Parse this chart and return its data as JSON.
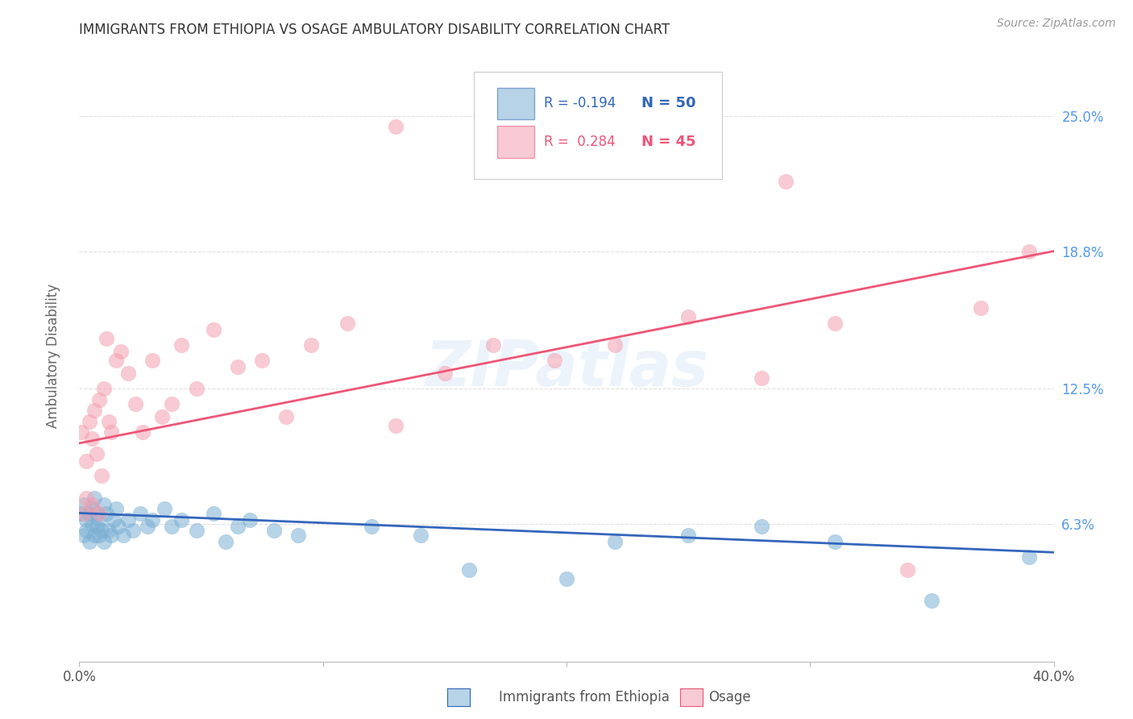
{
  "title": "IMMIGRANTS FROM ETHIOPIA VS OSAGE AMBULATORY DISABILITY CORRELATION CHART",
  "source": "Source: ZipAtlas.com",
  "ylabel": "Ambulatory Disability",
  "watermark": "ZIPatlas",
  "legend_blue_r": "R = -0.194",
  "legend_blue_n": "N = 50",
  "legend_pink_r": "R =  0.284",
  "legend_pink_n": "N = 45",
  "xmin": 0.0,
  "xmax": 0.4,
  "ymin": 0.0,
  "ymax": 0.28,
  "yticks": [
    0.0,
    0.063,
    0.125,
    0.188,
    0.25
  ],
  "ytick_labels": [
    "",
    "6.3%",
    "12.5%",
    "18.8%",
    "25.0%"
  ],
  "xticks": [
    0.0,
    0.1,
    0.2,
    0.3,
    0.4
  ],
  "xtick_labels": [
    "0.0%",
    "",
    "",
    "",
    "40.0%"
  ],
  "blue_scatter_x": [
    0.001,
    0.002,
    0.002,
    0.003,
    0.003,
    0.004,
    0.004,
    0.005,
    0.005,
    0.006,
    0.006,
    0.007,
    0.007,
    0.008,
    0.008,
    0.009,
    0.01,
    0.01,
    0.011,
    0.012,
    0.013,
    0.014,
    0.015,
    0.016,
    0.018,
    0.02,
    0.022,
    0.025,
    0.028,
    0.03,
    0.035,
    0.038,
    0.042,
    0.048,
    0.055,
    0.06,
    0.065,
    0.07,
    0.08,
    0.09,
    0.12,
    0.14,
    0.16,
    0.2,
    0.22,
    0.25,
    0.28,
    0.31,
    0.35,
    0.39
  ],
  "blue_scatter_y": [
    0.068,
    0.072,
    0.058,
    0.065,
    0.06,
    0.068,
    0.055,
    0.07,
    0.063,
    0.058,
    0.075,
    0.068,
    0.062,
    0.058,
    0.065,
    0.06,
    0.072,
    0.055,
    0.068,
    0.06,
    0.058,
    0.065,
    0.07,
    0.062,
    0.058,
    0.065,
    0.06,
    0.068,
    0.062,
    0.065,
    0.07,
    0.062,
    0.065,
    0.06,
    0.068,
    0.055,
    0.062,
    0.065,
    0.06,
    0.058,
    0.062,
    0.058,
    0.042,
    0.038,
    0.055,
    0.058,
    0.062,
    0.055,
    0.028,
    0.048
  ],
  "pink_scatter_x": [
    0.001,
    0.002,
    0.003,
    0.003,
    0.004,
    0.005,
    0.005,
    0.006,
    0.007,
    0.008,
    0.008,
    0.009,
    0.01,
    0.011,
    0.012,
    0.013,
    0.015,
    0.017,
    0.02,
    0.023,
    0.026,
    0.03,
    0.034,
    0.038,
    0.042,
    0.048,
    0.055,
    0.065,
    0.075,
    0.085,
    0.095,
    0.11,
    0.13,
    0.15,
    0.17,
    0.195,
    0.22,
    0.25,
    0.28,
    0.31,
    0.13,
    0.29,
    0.34,
    0.37,
    0.39
  ],
  "pink_scatter_y": [
    0.105,
    0.068,
    0.092,
    0.075,
    0.11,
    0.072,
    0.102,
    0.115,
    0.095,
    0.12,
    0.068,
    0.085,
    0.125,
    0.148,
    0.11,
    0.105,
    0.138,
    0.142,
    0.132,
    0.118,
    0.105,
    0.138,
    0.112,
    0.118,
    0.145,
    0.125,
    0.152,
    0.135,
    0.138,
    0.112,
    0.145,
    0.155,
    0.108,
    0.132,
    0.145,
    0.138,
    0.145,
    0.158,
    0.13,
    0.155,
    0.245,
    0.22,
    0.042,
    0.162,
    0.188
  ],
  "blue_line_x": [
    0.0,
    0.4
  ],
  "blue_line_y": [
    0.068,
    0.05
  ],
  "pink_line_x": [
    0.0,
    0.4
  ],
  "pink_line_y": [
    0.1,
    0.188
  ],
  "bg_color": "#ffffff",
  "blue_color": "#7BAFD4",
  "pink_color": "#F4A0B0",
  "blue_line_color": "#3366BB",
  "pink_line_color": "#EE5577",
  "grid_color": "#dddddd",
  "title_color": "#333333",
  "right_label_color": "#5599EE",
  "source_color": "#999999"
}
